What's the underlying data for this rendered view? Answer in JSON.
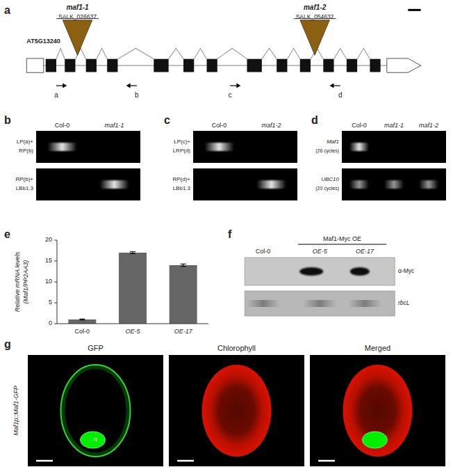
{
  "chart_data": [
    {
      "type": "gene_diagram",
      "title": "a",
      "annotations": [
        "maf1-1",
        "SALK_026637",
        "maf1-2",
        "SALK_054632",
        "AT5G13240",
        "a",
        "b",
        "c",
        "d"
      ],
      "colors": [
        "#8B6010",
        "#111111",
        "#999999",
        "#ffffff"
      ]
    },
    {
      "type": "gel",
      "title": "b",
      "categories": [
        "Col-0",
        "maf1-1"
      ],
      "annotations": [
        "LP(a)+",
        "RP(b)",
        "RP(b)+",
        "LBb1.3"
      ]
    },
    {
      "type": "gel",
      "title": "c",
      "categories": [
        "Col-0",
        "maf1-2"
      ],
      "annotations": [
        "LP(c)+",
        "LRP(d)",
        "RP(d)+",
        "LBb1.3"
      ]
    },
    {
      "type": "gel",
      "title": "d",
      "categories": [
        "Col-0",
        "maf1-1",
        "maf1-2"
      ],
      "annotations": [
        "Maf1",
        "(26 cycles)",
        "UBC10",
        "(20 cycles)"
      ]
    },
    {
      "type": "bar",
      "title": "e",
      "categories": [
        "Col-0",
        "OE-5",
        "OE-17"
      ],
      "values": [
        1.0,
        17.0,
        14.0
      ],
      "errors": [
        0.12,
        0.22,
        0.28
      ],
      "color": "#666666",
      "ylabel": [
        "Relative mRNA levels",
        "(Maf1/PP2AA3)"
      ],
      "ylim": [
        0,
        20
      ],
      "yticks": [
        0,
        5,
        10,
        15,
        20
      ],
      "grid": false
    },
    {
      "type": "blot",
      "title": "f",
      "subtitle": "Maf1-Myc OE",
      "categories": [
        "Col-0",
        "OE-5",
        "OE-17"
      ],
      "annotations": [
        "α-Myc",
        "rbcL"
      ],
      "colors": [
        "#c8c8c8",
        "#b8b8b8"
      ]
    },
    {
      "type": "images",
      "title": "g",
      "ylabel": "Maf1p::Maf1-GFP",
      "categories": [
        "GFP",
        "Chlorophyll",
        "Merged"
      ],
      "annotations": [
        "n"
      ]
    }
  ]
}
